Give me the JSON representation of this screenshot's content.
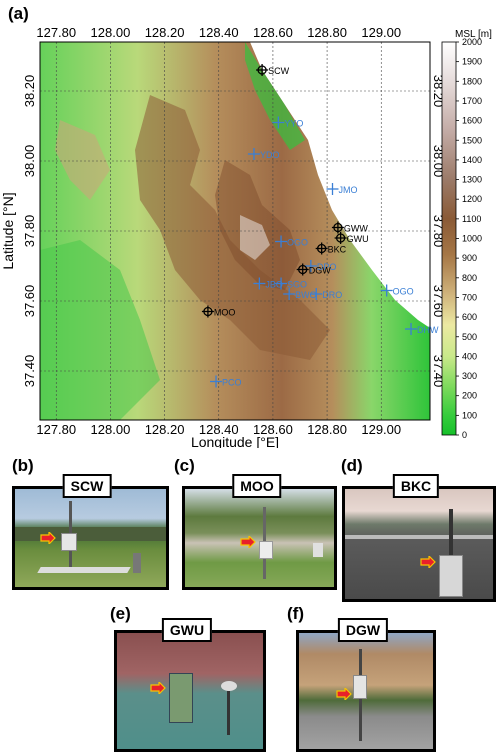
{
  "panel_a": {
    "letter": "(a)",
    "xlabel": "Longitude [°E]",
    "ylabel": "Latitude [°N]",
    "x_ticks": [
      "127.80",
      "128.00",
      "128.20",
      "128.40",
      "128.60",
      "128.80",
      "129.00"
    ],
    "y_ticks": [
      "38.20",
      "38.00",
      "37.80",
      "37.60",
      "37.40"
    ],
    "colorbar": {
      "title": "MSL [m]",
      "ticks": [
        "2000",
        "1900",
        "1800",
        "1700",
        "1600",
        "1500",
        "1400",
        "1300",
        "1200",
        "1100",
        "1000",
        "900",
        "800",
        "700",
        "600",
        "500",
        "400",
        "300",
        "200",
        "100",
        "0"
      ]
    },
    "stations_black": [
      {
        "name": "SCW",
        "lon": 128.56,
        "lat": 38.26
      },
      {
        "name": "MOO",
        "lon": 128.36,
        "lat": 37.57
      },
      {
        "name": "BKC",
        "lon": 128.78,
        "lat": 37.75
      },
      {
        "name": "GWU",
        "lon": 128.85,
        "lat": 37.78
      },
      {
        "name": "GWW",
        "lon": 128.84,
        "lat": 37.81
      },
      {
        "name": "DGW",
        "lon": 128.71,
        "lat": 37.69
      }
    ],
    "stations_blue": [
      {
        "name": "YYO",
        "lon": 128.62,
        "lat": 38.11
      },
      {
        "name": "YDO",
        "lon": 128.53,
        "lat": 38.02
      },
      {
        "name": "JMO",
        "lon": 128.82,
        "lat": 37.92
      },
      {
        "name": "OGO",
        "lon": 128.63,
        "lat": 37.77
      },
      {
        "name": "DPO",
        "lon": 128.74,
        "lat": 37.7
      },
      {
        "name": "JBO",
        "lon": 128.55,
        "lat": 37.65
      },
      {
        "name": "SGO",
        "lon": 128.63,
        "lat": 37.65
      },
      {
        "name": "BWO",
        "lon": 128.66,
        "lat": 37.62
      },
      {
        "name": "DRO",
        "lon": 128.76,
        "lat": 37.62
      },
      {
        "name": "OGO",
        "lon": 129.02,
        "lat": 37.63
      },
      {
        "name": "DHW",
        "lon": 129.11,
        "lat": 37.52
      },
      {
        "name": "PCO",
        "lon": 128.39,
        "lat": 37.37
      }
    ]
  },
  "photos": [
    {
      "letter": "(b)",
      "label": "SCW"
    },
    {
      "letter": "(c)",
      "label": "MOO"
    },
    {
      "letter": "(d)",
      "label": "BKC"
    },
    {
      "letter": "(e)",
      "label": "GWU"
    },
    {
      "letter": "(f)",
      "label": "DGW"
    }
  ],
  "colors": {
    "black_marker": "#000000",
    "blue_marker": "#3a7fd5",
    "arrow_fill": "#e8202a",
    "arrow_border": "#f5c400"
  }
}
